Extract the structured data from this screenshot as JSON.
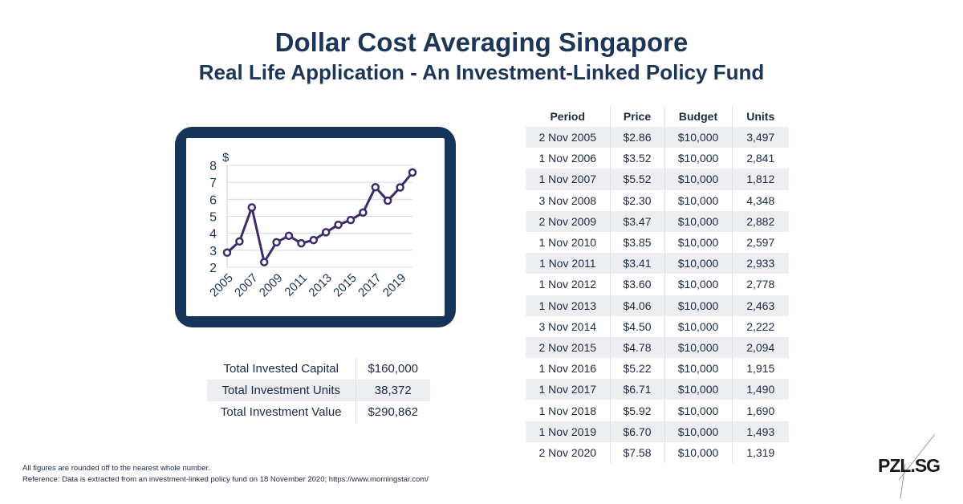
{
  "title": "Dollar Cost Averaging Singapore",
  "subtitle": "Real Life Application - An Investment-Linked Policy Fund",
  "chart_data": {
    "type": "line",
    "ylabel": "$",
    "ylim": [
      2,
      8
    ],
    "yticks": [
      "2",
      "3",
      "4",
      "5",
      "6",
      "7",
      "8"
    ],
    "xticks": [
      "2005",
      "2007",
      "2009",
      "2011",
      "2013",
      "2015",
      "2017",
      "2019"
    ],
    "grid": true,
    "x": [
      2005,
      2006,
      2007,
      2008,
      2009,
      2010,
      2011,
      2012,
      2013,
      2014,
      2015,
      2016,
      2017,
      2018,
      2019,
      2020
    ],
    "values": [
      2.86,
      3.52,
      5.52,
      2.3,
      3.47,
      3.85,
      3.41,
      3.6,
      4.06,
      4.5,
      4.78,
      5.22,
      6.71,
      5.92,
      6.7,
      7.58
    ],
    "color": "#3d2a6b"
  },
  "table": {
    "headers": [
      "Period",
      "Price",
      "Budget",
      "Units"
    ],
    "rows": [
      [
        "2 Nov 2005",
        "$2.86",
        "$10,000",
        "3,497"
      ],
      [
        "1 Nov 2006",
        "$3.52",
        "$10,000",
        "2,841"
      ],
      [
        "1 Nov 2007",
        "$5.52",
        "$10,000",
        "1,812"
      ],
      [
        "3 Nov 2008",
        "$2.30",
        "$10,000",
        "4,348"
      ],
      [
        "2 Nov 2009",
        "$3.47",
        "$10,000",
        "2,882"
      ],
      [
        "1 Nov 2010",
        "$3.85",
        "$10,000",
        "2,597"
      ],
      [
        "1 Nov 2011",
        "$3.41",
        "$10,000",
        "2,933"
      ],
      [
        "1 Nov 2012",
        "$3.60",
        "$10,000",
        "2,778"
      ],
      [
        "1 Nov 2013",
        "$4.06",
        "$10,000",
        "2,463"
      ],
      [
        "3 Nov 2014",
        "$4.50",
        "$10,000",
        "2,222"
      ],
      [
        "2 Nov 2015",
        "$4.78",
        "$10,000",
        "2,094"
      ],
      [
        "1 Nov 2016",
        "$5.22",
        "$10,000",
        "1,915"
      ],
      [
        "1 Nov 2017",
        "$6.71",
        "$10,000",
        "1,490"
      ],
      [
        "1 Nov 2018",
        "$5.92",
        "$10,000",
        "1,690"
      ],
      [
        "1 Nov 2019",
        "$6.70",
        "$10,000",
        "1,493"
      ],
      [
        "2 Nov 2020",
        "$7.58",
        "$10,000",
        "1,319"
      ]
    ]
  },
  "summary": [
    {
      "label": "Total Invested Capital",
      "value": "$160,000"
    },
    {
      "label": "Total Investment Units",
      "value": "38,372"
    },
    {
      "label": "Total Investment Value",
      "value": "$290,862"
    }
  ],
  "footnote1": "All figures are rounded off to the nearest whole number.",
  "footnote2": "Reference: Data is extracted from an investment-linked policy fund on 18 November 2020; https://www.morningstar.com/",
  "logo": "PZL.SG"
}
